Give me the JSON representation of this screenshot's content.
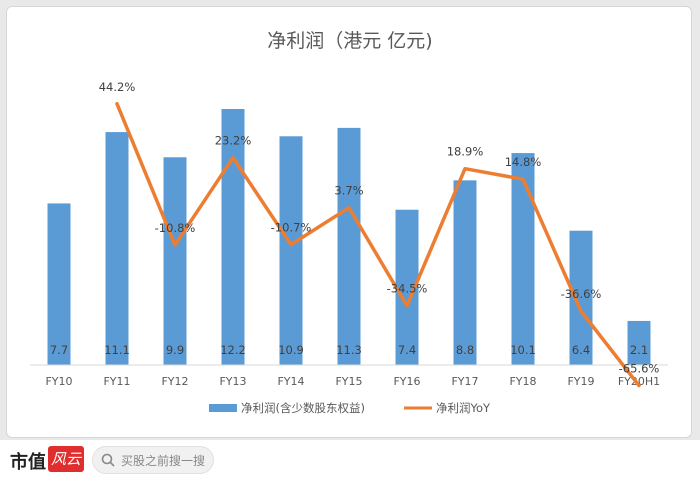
{
  "chart_data": {
    "type": "bar",
    "title": "净利润（港元 亿元)",
    "categories": [
      "FY10",
      "FY11",
      "FY12",
      "FY13",
      "FY14",
      "FY15",
      "FY16",
      "FY17",
      "FY18",
      "FY19",
      "FY20H1"
    ],
    "series": [
      {
        "name": "净利润(含少数股东权益)",
        "type": "bar",
        "values": [
          7.7,
          11.1,
          9.9,
          12.2,
          10.9,
          11.3,
          7.4,
          8.8,
          10.1,
          6.4,
          2.1
        ],
        "labels": [
          "7.7",
          "11.1",
          "9.9",
          "12.2",
          "10.9",
          "11.3",
          "7.4",
          "8.8",
          "10.1",
          "6.4",
          "2.1"
        ],
        "color": "#5b9bd5"
      },
      {
        "name": "净利润YoY",
        "type": "line",
        "x": [
          "FY11",
          "FY12",
          "FY13",
          "FY14",
          "FY15",
          "FY16",
          "FY17",
          "FY18",
          "FY19",
          "FY20H1"
        ],
        "values": [
          44.2,
          -10.8,
          23.2,
          -10.7,
          3.7,
          -34.5,
          18.9,
          14.8,
          -36.6,
          -65.6
        ],
        "labels": [
          "44.2%",
          "-10.8%",
          "23.2%",
          "-10.7%",
          "3.7%",
          "-34.5%",
          "18.9%",
          "14.8%",
          "-36.6%",
          "-65.6%"
        ],
        "color": "#ed7d31"
      }
    ],
    "legend": "bottom",
    "grid": false
  },
  "footer": {
    "logo_text": "市值",
    "logo_badge": "风云",
    "search_placeholder": "买股之前搜一搜"
  }
}
